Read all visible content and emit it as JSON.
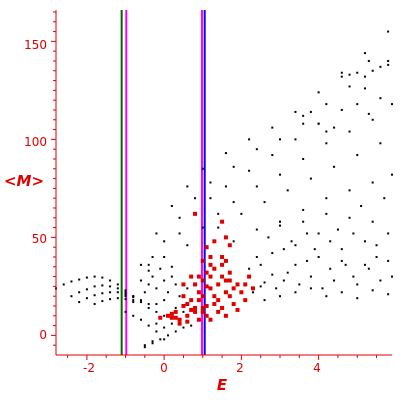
{
  "chart_data": {
    "type": "scatter",
    "title": "",
    "xlabel": "E",
    "ylabel": "<M>",
    "xlim": [
      -2.8,
      5.9
    ],
    "ylim": [
      -10,
      166
    ],
    "xticks": [
      -2,
      0,
      2,
      4
    ],
    "yticks": [
      0,
      50,
      100,
      150
    ],
    "xtick_labels": [
      "-2",
      "0",
      "2",
      "4"
    ],
    "ytick_labels": [
      "0",
      "50",
      "100",
      "150"
    ],
    "grid": false,
    "axis_color": "#e00000",
    "vertical_lines": [
      {
        "x": -1.1,
        "color": "#006400"
      },
      {
        "x": -0.98,
        "color": "#ff00ff"
      },
      {
        "x": 0.98,
        "color": "#ff00ff"
      },
      {
        "x": 1.05,
        "color": "#0000ff"
      }
    ],
    "series": [
      {
        "color": "#000000",
        "marker": "small-dot",
        "points": [
          [
            -2.8,
            24
          ],
          [
            -2.6,
            26
          ],
          [
            -2.4,
            27.5
          ],
          [
            -2.2,
            28.5
          ],
          [
            -2.0,
            29.5
          ],
          [
            -1.8,
            30
          ],
          [
            -1.6,
            29.5
          ],
          [
            -1.4,
            28
          ],
          [
            -1.2,
            26
          ],
          [
            -1.0,
            23
          ],
          [
            -0.8,
            20
          ],
          [
            -0.6,
            17
          ],
          [
            -0.4,
            14
          ],
          [
            -0.2,
            12
          ],
          [
            0.0,
            10
          ],
          [
            -2.4,
            20
          ],
          [
            -2.2,
            22
          ],
          [
            -2.0,
            23.5
          ],
          [
            -1.8,
            25
          ],
          [
            -1.6,
            25.5
          ],
          [
            -1.4,
            25
          ],
          [
            -1.2,
            24
          ],
          [
            -1.0,
            22
          ],
          [
            -0.8,
            20
          ],
          [
            -0.6,
            18
          ],
          [
            -0.4,
            16
          ],
          [
            -2.2,
            17
          ],
          [
            -2.0,
            19
          ],
          [
            -1.8,
            20.5
          ],
          [
            -1.6,
            21.5
          ],
          [
            -1.4,
            22
          ],
          [
            -1.2,
            22
          ],
          [
            -1.0,
            21
          ],
          [
            -0.8,
            19.5
          ],
          [
            -0.6,
            17.5
          ],
          [
            -1.8,
            16
          ],
          [
            -1.6,
            17.5
          ],
          [
            -1.4,
            18.5
          ],
          [
            -1.2,
            19
          ],
          [
            -1.0,
            18.5
          ],
          [
            -0.8,
            17
          ],
          [
            -1.0,
            12
          ],
          [
            -0.8,
            10
          ],
          [
            -0.6,
            8
          ],
          [
            -0.4,
            5
          ],
          [
            -0.2,
            2
          ],
          [
            0.0,
            -2
          ],
          [
            -0.3,
            -4
          ],
          [
            -0.5,
            -6
          ],
          [
            -1.0,
            20
          ],
          [
            -0.6,
            36
          ],
          [
            -0.2,
            52
          ],
          [
            0.2,
            66
          ],
          [
            0.6,
            76
          ],
          [
            1.0,
            85
          ],
          [
            1.6,
            93
          ],
          [
            2.2,
            100
          ],
          [
            2.8,
            106
          ],
          [
            3.4,
            114
          ],
          [
            4.0,
            124
          ],
          [
            4.6,
            134
          ],
          [
            5.2,
            144
          ],
          [
            5.8,
            155
          ],
          [
            -0.8,
            18
          ],
          [
            -0.4,
            33
          ],
          [
            0.0,
            48
          ],
          [
            0.4,
            60
          ],
          [
            0.8,
            70
          ],
          [
            1.2,
            78
          ],
          [
            1.8,
            86
          ],
          [
            2.4,
            95
          ],
          [
            3.0,
            100
          ],
          [
            3.6,
            108
          ],
          [
            4.2,
            118
          ],
          [
            4.8,
            127
          ],
          [
            5.3,
            140
          ],
          [
            -0.4,
            26
          ],
          [
            0.0,
            40
          ],
          [
            0.4,
            52
          ],
          [
            0.8,
            62
          ],
          [
            1.2,
            70
          ],
          [
            1.6,
            76
          ],
          [
            2.2,
            84
          ],
          [
            2.8,
            92
          ],
          [
            3.4,
            100
          ],
          [
            4.0,
            108
          ],
          [
            4.6,
            115
          ],
          [
            5.2,
            126
          ],
          [
            5.8,
            140
          ],
          [
            0.2,
            35
          ],
          [
            0.6,
            46
          ],
          [
            1.0,
            55
          ],
          [
            1.4,
            62
          ],
          [
            1.8,
            68
          ],
          [
            2.4,
            76
          ],
          [
            3.0,
            82
          ],
          [
            3.6,
            90
          ],
          [
            4.2,
            98
          ],
          [
            4.8,
            104
          ],
          [
            5.4,
            110
          ],
          [
            5.9,
            118
          ],
          [
            1.4,
            55
          ],
          [
            2.0,
            62
          ],
          [
            2.6,
            68
          ],
          [
            3.2,
            74
          ],
          [
            3.8,
            80
          ],
          [
            4.4,
            86
          ],
          [
            5.0,
            92
          ],
          [
            5.6,
            98
          ],
          [
            1.8,
            48
          ],
          [
            2.4,
            54
          ],
          [
            3.0,
            58
          ],
          [
            3.6,
            64
          ],
          [
            4.2,
            70
          ],
          [
            4.8,
            74
          ],
          [
            5.4,
            78
          ],
          [
            5.9,
            82
          ],
          [
            4.6,
            132
          ],
          [
            4.8,
            133
          ],
          [
            5.0,
            134
          ],
          [
            5.2,
            132
          ],
          [
            5.4,
            135
          ],
          [
            5.6,
            137
          ],
          [
            5.8,
            138
          ],
          [
            3.6,
            112
          ],
          [
            3.8,
            114
          ],
          [
            4.0,
            108
          ],
          [
            4.2,
            104
          ],
          [
            4.4,
            106
          ],
          [
            5.0,
            118
          ],
          [
            5.3,
            113
          ],
          [
            5.6,
            121
          ],
          [
            2.2,
            30
          ],
          [
            2.5,
            36
          ],
          [
            2.8,
            42
          ],
          [
            3.1,
            28
          ],
          [
            3.4,
            46
          ],
          [
            3.7,
            38
          ],
          [
            4.0,
            52
          ],
          [
            4.3,
            34
          ],
          [
            4.6,
            44
          ],
          [
            4.9,
            30
          ],
          [
            5.2,
            48
          ],
          [
            5.5,
            40
          ],
          [
            5.8,
            52
          ],
          [
            2.3,
            22
          ],
          [
            2.6,
            27
          ],
          [
            2.9,
            24
          ],
          [
            3.2,
            32
          ],
          [
            3.5,
            26
          ],
          [
            3.8,
            30
          ],
          [
            4.1,
            24
          ],
          [
            4.4,
            28
          ],
          [
            4.7,
            36
          ],
          [
            5.0,
            26
          ],
          [
            5.3,
            34
          ],
          [
            5.6,
            28
          ],
          [
            5.9,
            30
          ],
          [
            2.4,
            40
          ],
          [
            2.7,
            50
          ],
          [
            3.0,
            56
          ],
          [
            3.3,
            48
          ],
          [
            3.6,
            58
          ],
          [
            3.9,
            44
          ],
          [
            4.2,
            62
          ],
          [
            4.5,
            54
          ],
          [
            4.8,
            60
          ],
          [
            5.1,
            66
          ],
          [
            5.4,
            58
          ],
          [
            5.7,
            70
          ],
          [
            2.6,
            18
          ],
          [
            3.0,
            20
          ],
          [
            3.4,
            22
          ],
          [
            3.8,
            24
          ],
          [
            4.2,
            20
          ],
          [
            4.6,
            22
          ],
          [
            5.0,
            19
          ],
          [
            5.4,
            23
          ],
          [
            5.8,
            21
          ],
          [
            2.2,
            34
          ],
          [
            2.5,
            25
          ],
          [
            2.8,
            31
          ],
          [
            3.1,
            44
          ],
          [
            3.4,
            36
          ],
          [
            3.7,
            52
          ],
          [
            4.0,
            40
          ],
          [
            4.3,
            48
          ],
          [
            4.6,
            38
          ],
          [
            4.9,
            52
          ],
          [
            5.2,
            36
          ],
          [
            5.5,
            46
          ],
          [
            5.8,
            38
          ],
          [
            -0.6,
            28
          ],
          [
            -0.3,
            30
          ],
          [
            0.0,
            28
          ],
          [
            0.3,
            26
          ],
          [
            0.6,
            24
          ],
          [
            -0.5,
            22
          ],
          [
            -0.2,
            24
          ],
          [
            0.1,
            22
          ],
          [
            0.4,
            20
          ],
          [
            0.7,
            18
          ],
          [
            -0.4,
            36
          ],
          [
            -0.1,
            34
          ],
          [
            0.2,
            30
          ],
          [
            -0.3,
            40
          ],
          [
            0.0,
            18
          ],
          [
            0.3,
            14
          ],
          [
            -0.2,
            16
          ],
          [
            0.5,
            12
          ],
          [
            -0.5,
            -5
          ],
          [
            -0.3,
            -3
          ],
          [
            -0.1,
            -2
          ],
          [
            0.1,
            0
          ],
          [
            0.3,
            2
          ],
          [
            0.5,
            4
          ],
          [
            0.7,
            5
          ],
          [
            -0.2,
            6
          ],
          [
            0.0,
            4
          ],
          [
            0.2,
            6
          ]
        ]
      },
      {
        "color": "#e00000",
        "marker": "square",
        "points": [
          [
            -0.1,
            9
          ],
          [
            0.1,
            10
          ],
          [
            0.3,
            12
          ],
          [
            0.4,
            8
          ],
          [
            0.6,
            10
          ],
          [
            0.7,
            13
          ],
          [
            0.5,
            15
          ],
          [
            0.3,
            9
          ],
          [
            0.2,
            11
          ],
          [
            0.8,
            12
          ],
          [
            0.9,
            18
          ],
          [
            1.0,
            20
          ],
          [
            1.1,
            15
          ],
          [
            1.0,
            12
          ],
          [
            0.9,
            22
          ],
          [
            1.1,
            25
          ],
          [
            1.0,
            28
          ],
          [
            0.9,
            30
          ],
          [
            1.1,
            32
          ],
          [
            1.0,
            14
          ],
          [
            1.2,
            24
          ],
          [
            1.3,
            20
          ],
          [
            1.4,
            26
          ],
          [
            1.5,
            30
          ],
          [
            1.6,
            22
          ],
          [
            1.4,
            18
          ],
          [
            1.3,
            16
          ],
          [
            1.5,
            14
          ],
          [
            1.6,
            28
          ],
          [
            1.7,
            20
          ],
          [
            1.8,
            24
          ],
          [
            1.9,
            26
          ],
          [
            2.0,
            22
          ],
          [
            2.1,
            18
          ],
          [
            1.7,
            32
          ],
          [
            1.5,
            36
          ],
          [
            1.3,
            34
          ],
          [
            1.2,
            40
          ],
          [
            1.6,
            38
          ],
          [
            1.8,
            16
          ],
          [
            0.8,
            14
          ],
          [
            0.7,
            18
          ],
          [
            0.6,
            16
          ],
          [
            0.5,
            20
          ],
          [
            0.8,
            26
          ],
          [
            1.2,
            30
          ],
          [
            1.1,
            10
          ],
          [
            1.4,
            12
          ],
          [
            1.6,
            10
          ],
          [
            1.9,
            13
          ],
          [
            0.9,
            8
          ],
          [
            0.4,
            6
          ],
          [
            0.2,
            9
          ],
          [
            0.6,
            7
          ],
          [
            1.2,
            8
          ],
          [
            1.5,
            40
          ],
          [
            1.7,
            46
          ],
          [
            1.1,
            45
          ],
          [
            1.3,
            48
          ],
          [
            1.7,
            28
          ],
          [
            2.1,
            26
          ],
          [
            2.2,
            30
          ],
          [
            2.3,
            24
          ],
          [
            1.0,
            38
          ],
          [
            1.2,
            36
          ],
          [
            0.5,
            26
          ],
          [
            0.7,
            30
          ],
          [
            1.5,
            58
          ],
          [
            0.8,
            62
          ],
          [
            1.6,
            50
          ]
        ]
      }
    ]
  }
}
